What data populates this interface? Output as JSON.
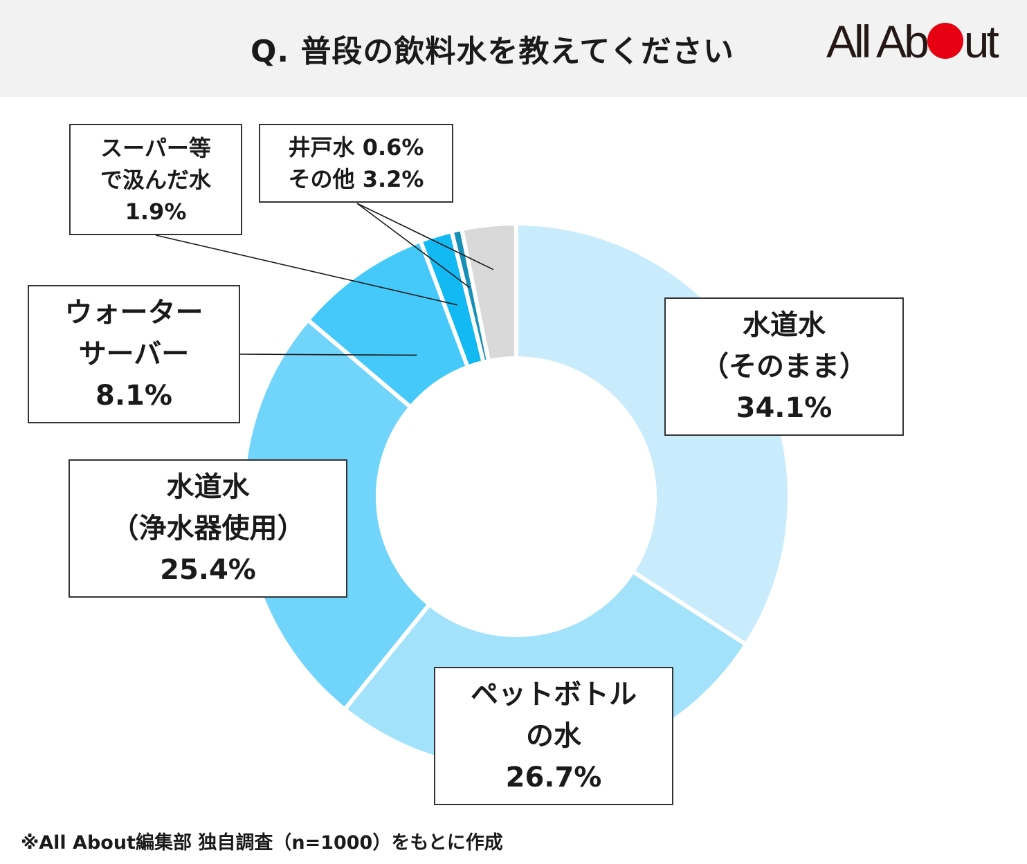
{
  "header": {
    "title": "Q. 普段の飲料水を教えてください",
    "logo": {
      "part1": "All Ab",
      "part2": "ut",
      "dot_color": "#e60012"
    }
  },
  "chart_data": {
    "type": "pie",
    "style": "donut",
    "title": "Q. 普段の飲料水を教えてください",
    "unit": "%",
    "slices": [
      {
        "key": "tap_raw",
        "name": "水道水（そのまま）",
        "value": 34.1,
        "color": "#c9ecfc",
        "label_lines": [
          "水道水",
          "（そのまま）",
          "34.1%"
        ]
      },
      {
        "key": "bottled",
        "name": "ペットボトルの水",
        "value": 26.7,
        "color": "#a3e2fb",
        "label_lines": [
          "ペットボトル",
          "の水",
          "26.7%"
        ]
      },
      {
        "key": "tap_filtered",
        "name": "水道水（浄水器使用）",
        "value": 25.4,
        "color": "#70d4fb",
        "label_lines": [
          "水道水",
          "（浄水器使用）",
          "25.4%"
        ]
      },
      {
        "key": "server",
        "name": "ウォーターサーバー",
        "value": 8.1,
        "color": "#45c9fa",
        "label_lines": [
          "ウォーター",
          "サーバー",
          "8.1%"
        ]
      },
      {
        "key": "store",
        "name": "スーパー等で汲んだ水",
        "value": 1.9,
        "color": "#13b9f2",
        "label_lines": [
          "スーパー等",
          "で汲んだ水",
          "1.9%"
        ]
      },
      {
        "key": "well",
        "name": "井戸水",
        "value": 0.6,
        "color": "#1790b8",
        "label_lines": [
          "井戸水 0.6%"
        ]
      },
      {
        "key": "other",
        "name": "その他",
        "value": 3.2,
        "color": "#d9d9d9",
        "label_lines": [
          "その他 3.2%"
        ]
      }
    ]
  },
  "footnote": "※All About編集部 独自調査（n=1000）をもとに作成"
}
